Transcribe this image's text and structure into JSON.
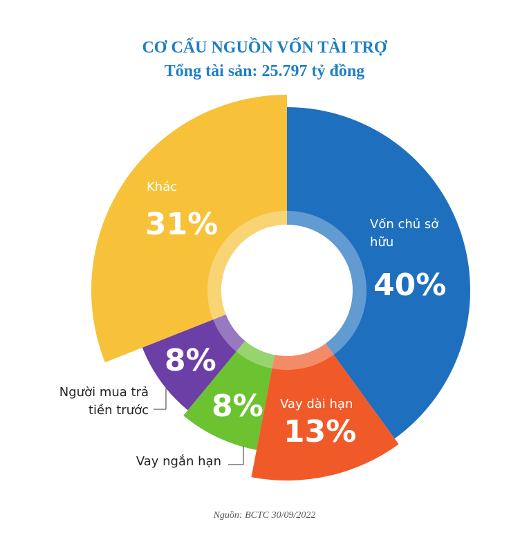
{
  "chart_data": {
    "type": "pie",
    "title": "CƠ CẤU NGUỒN VỐN TÀI TRỢ",
    "subtitle": "Tổng tài sản: 25.797 tỷ đồng",
    "categories": [
      "Vốn chủ sở hữu",
      "Vay dài hạn",
      "Vay ngắn hạn",
      "Người mua trả tiền trước",
      "Khác"
    ],
    "values": [
      40,
      13,
      8,
      8,
      31
    ],
    "value_labels": [
      "40%",
      "13%",
      "8%",
      "8%",
      "31%"
    ],
    "colors": [
      "#1f6fbf",
      "#f05a28",
      "#6cc230",
      "#6b3fa6",
      "#f7c23a"
    ],
    "source": "Nguồn: BCTC 30/09/2022"
  }
}
